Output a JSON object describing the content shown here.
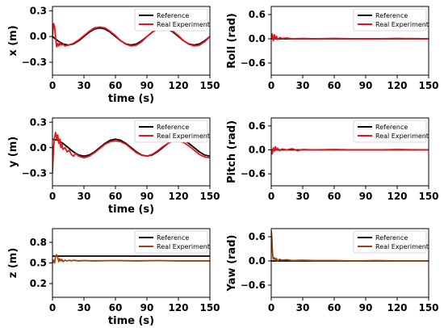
{
  "chart_data": [
    {
      "type": "line",
      "xlabel": "time (s)",
      "ylabel": "x (m)",
      "xlim": [
        0,
        150
      ],
      "ylim": [
        -0.45,
        0.35
      ],
      "xticks": [
        0,
        30,
        60,
        90,
        120,
        150
      ],
      "yticks": [
        -0.3,
        0.0,
        0.3
      ],
      "ytick_labels": [
        "−0.3",
        "0.0",
        "0.3"
      ],
      "legend": "top-right",
      "series": [
        {
          "name": "Reference",
          "color": "#000000",
          "x": [
            0,
            5,
            10,
            15,
            20,
            25,
            30,
            35,
            40,
            45,
            50,
            55,
            60,
            65,
            70,
            75,
            80,
            85,
            90,
            95,
            100,
            105,
            110,
            115,
            120,
            125,
            130,
            135,
            140,
            145,
            150
          ],
          "y": [
            0.0,
            -0.05,
            -0.087,
            -0.1,
            -0.087,
            -0.05,
            0.0,
            0.05,
            0.087,
            0.1,
            0.087,
            0.05,
            0.0,
            -0.05,
            -0.087,
            -0.1,
            -0.087,
            -0.05,
            0.0,
            0.05,
            0.087,
            0.1,
            0.087,
            0.05,
            0.0,
            -0.05,
            -0.087,
            -0.1,
            -0.087,
            -0.05,
            0.0
          ]
        },
        {
          "name": "Real Experiment",
          "color": "#e8141c",
          "x": [
            0,
            1,
            2,
            3,
            4,
            5,
            6,
            7,
            8,
            10,
            12,
            15,
            20,
            25,
            30,
            35,
            40,
            45,
            50,
            55,
            60,
            65,
            70,
            75,
            80,
            85,
            90,
            95,
            100,
            105,
            110,
            115,
            120,
            125,
            130,
            135,
            140,
            145,
            150
          ],
          "y": [
            0.0,
            0.15,
            0.12,
            -0.02,
            -0.12,
            -0.08,
            -0.11,
            -0.07,
            -0.1,
            -0.09,
            -0.11,
            -0.1,
            -0.08,
            -0.04,
            0.01,
            0.06,
            0.1,
            0.11,
            0.1,
            0.06,
            0.01,
            -0.05,
            -0.09,
            -0.11,
            -0.1,
            -0.06,
            0.0,
            0.05,
            0.09,
            0.11,
            0.1,
            0.06,
            0.01,
            -0.05,
            -0.09,
            -0.11,
            -0.1,
            -0.06,
            0.0
          ]
        }
      ]
    },
    {
      "type": "line",
      "xlabel": "",
      "ylabel": "Roll (rad)",
      "xlim": [
        0,
        150
      ],
      "ylim": [
        -0.9,
        0.8
      ],
      "xticks": [
        0,
        30,
        60,
        90,
        120,
        150
      ],
      "yticks": [
        -0.6,
        0.0,
        0.6
      ],
      "ytick_labels": [
        "−0.6",
        "0.0",
        "0.6"
      ],
      "legend": "top-right",
      "series": [
        {
          "name": "Reference",
          "color": "#000000",
          "x": [
            0,
            150
          ],
          "y": [
            0.0,
            0.0
          ]
        },
        {
          "name": "Real Experiment",
          "color": "#e8141c",
          "x": [
            0,
            1,
            2,
            3,
            4,
            5,
            6,
            8,
            10,
            15,
            20,
            30,
            40,
            60,
            80,
            100,
            120,
            150
          ],
          "y": [
            0.0,
            0.12,
            -0.05,
            0.1,
            0.0,
            0.06,
            -0.02,
            0.03,
            0.01,
            0.02,
            0.0,
            0.01,
            0.0,
            0.01,
            0.0,
            0.0,
            0.01,
            0.0
          ]
        }
      ]
    },
    {
      "type": "line",
      "xlabel": "time (s)",
      "ylabel": "y (m)",
      "xlim": [
        0,
        150
      ],
      "ylim": [
        -0.45,
        0.35
      ],
      "xticks": [
        0,
        30,
        60,
        90,
        120,
        150
      ],
      "yticks": [
        -0.3,
        0.0,
        0.3
      ],
      "ytick_labels": [
        "−0.3",
        "0.0",
        "0.3"
      ],
      "legend": "top-right",
      "series": [
        {
          "name": "Reference",
          "color": "#000000",
          "x": [
            0,
            5,
            10,
            15,
            20,
            25,
            30,
            35,
            40,
            45,
            50,
            55,
            60,
            65,
            70,
            75,
            80,
            85,
            90,
            95,
            100,
            105,
            110,
            115,
            120,
            125,
            130,
            135,
            140,
            145,
            150
          ],
          "y": [
            0.1,
            0.087,
            0.05,
            0.0,
            -0.05,
            -0.087,
            -0.1,
            -0.087,
            -0.05,
            0.0,
            0.05,
            0.087,
            0.1,
            0.087,
            0.05,
            0.0,
            -0.05,
            -0.087,
            -0.1,
            -0.087,
            -0.05,
            0.0,
            0.05,
            0.087,
            0.1,
            0.087,
            0.05,
            0.0,
            -0.05,
            -0.087,
            -0.1
          ]
        },
        {
          "name": "Real Experiment",
          "color": "#e8141c",
          "x": [
            0,
            1,
            2,
            3,
            4,
            5,
            6,
            7,
            8,
            9,
            10,
            12,
            14,
            16,
            18,
            20,
            22,
            25,
            30,
            35,
            40,
            45,
            50,
            55,
            60,
            65,
            70,
            75,
            80,
            85,
            90,
            95,
            100,
            105,
            110,
            115,
            120,
            125,
            130,
            135,
            140,
            145,
            150
          ],
          "y": [
            -0.3,
            0.0,
            0.12,
            0.18,
            0.1,
            0.15,
            0.05,
            0.1,
            0.0,
            0.04,
            -0.02,
            0.0,
            -0.05,
            -0.03,
            -0.08,
            -0.1,
            -0.07,
            -0.1,
            -0.12,
            -0.1,
            -0.06,
            -0.01,
            0.04,
            0.07,
            0.08,
            0.07,
            0.04,
            -0.01,
            -0.06,
            -0.09,
            -0.1,
            -0.08,
            -0.04,
            0.01,
            0.05,
            0.08,
            0.08,
            0.06,
            0.02,
            -0.03,
            -0.08,
            -0.11,
            -0.12
          ]
        }
      ]
    },
    {
      "type": "line",
      "xlabel": "",
      "ylabel": "Pitch (rad)",
      "xlim": [
        0,
        150
      ],
      "ylim": [
        -0.9,
        0.8
      ],
      "xticks": [
        0,
        30,
        60,
        90,
        120,
        150
      ],
      "yticks": [
        -0.6,
        0.0,
        0.6
      ],
      "ytick_labels": [
        "−0.6",
        "0.0",
        "0.6"
      ],
      "legend": "top-right",
      "series": [
        {
          "name": "Reference",
          "color": "#000000",
          "x": [
            0,
            150
          ],
          "y": [
            0.0,
            0.0
          ]
        },
        {
          "name": "Real Experiment",
          "color": "#e8141c",
          "x": [
            0,
            1,
            2,
            3,
            4,
            5,
            6,
            8,
            10,
            15,
            20,
            25,
            30,
            40,
            60,
            80,
            100,
            120,
            150
          ],
          "y": [
            0.0,
            -0.1,
            0.05,
            -0.03,
            0.08,
            0.0,
            0.04,
            -0.02,
            0.02,
            0.0,
            0.03,
            -0.02,
            0.01,
            0.0,
            0.01,
            0.0,
            0.0,
            0.01,
            0.0
          ]
        }
      ]
    },
    {
      "type": "line",
      "xlabel": "time (s)",
      "ylabel": "z (m)",
      "xlim": [
        0,
        150
      ],
      "ylim": [
        0.0,
        1.0
      ],
      "xticks": [
        0,
        30,
        60,
        90,
        120,
        150
      ],
      "yticks": [
        0.2,
        0.5,
        0.8
      ],
      "ytick_labels": [
        "0.2",
        "0.5",
        "0.8"
      ],
      "legend": "top-right",
      "series": [
        {
          "name": "Reference",
          "color": "#000000",
          "x": [
            0,
            150
          ],
          "y": [
            0.6,
            0.6
          ]
        },
        {
          "name": "Real Experiment",
          "color": "#a0420e",
          "x": [
            0,
            1,
            2,
            3,
            4,
            5,
            6,
            7,
            8,
            9,
            10,
            12,
            14,
            16,
            18,
            20,
            25,
            30,
            40,
            60,
            80,
            100,
            120,
            150
          ],
          "y": [
            0.5,
            0.54,
            0.5,
            0.6,
            0.62,
            0.58,
            0.52,
            0.56,
            0.53,
            0.55,
            0.52,
            0.54,
            0.53,
            0.54,
            0.53,
            0.54,
            0.53,
            0.535,
            0.53,
            0.535,
            0.53,
            0.535,
            0.53,
            0.53
          ]
        }
      ]
    },
    {
      "type": "line",
      "xlabel": "",
      "ylabel": "Yaw (rad)",
      "xlim": [
        0,
        150
      ],
      "ylim": [
        -0.9,
        0.8
      ],
      "xticks": [
        0,
        30,
        60,
        90,
        120,
        150
      ],
      "yticks": [
        -0.6,
        0.0,
        0.6
      ],
      "ytick_labels": [
        "−0.6",
        "0.0",
        "0.6"
      ],
      "legend": "top-right",
      "series": [
        {
          "name": "Reference",
          "color": "#000000",
          "x": [
            0,
            150
          ],
          "y": [
            0.0,
            0.0
          ]
        },
        {
          "name": "Real Experiment",
          "color": "#a0420e",
          "x": [
            0,
            0.5,
            1,
            1.5,
            2,
            3,
            4,
            5,
            6,
            8,
            10,
            15,
            20,
            30,
            40,
            60,
            80,
            100,
            120,
            150
          ],
          "y": [
            0.75,
            0.6,
            0.3,
            0.1,
            0.05,
            0.08,
            0.02,
            0.06,
            0.0,
            0.04,
            0.02,
            0.03,
            0.01,
            0.02,
            0.01,
            0.01,
            0.0,
            0.01,
            0.0,
            0.0
          ]
        }
      ]
    }
  ]
}
